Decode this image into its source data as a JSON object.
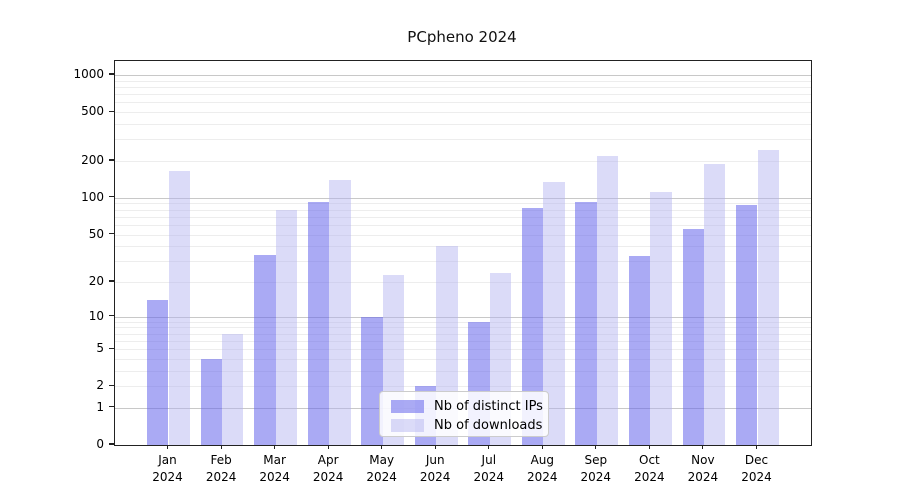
{
  "chart_data": {
    "type": "bar",
    "title": "PCpheno 2024",
    "xlabel": "",
    "ylabel": "",
    "categories": [
      "Jan",
      "Feb",
      "Mar",
      "Apr",
      "May",
      "Jun",
      "Jul",
      "Aug",
      "Sep",
      "Oct",
      "Nov",
      "Dec"
    ],
    "category_year_label": "2024",
    "series": [
      {
        "name": "Nb of distinct IPs",
        "values": [
          14,
          4,
          34,
          92,
          10,
          2,
          9,
          82,
          93,
          33,
          56,
          88
        ],
        "color": "rgba(100,100,235,0.55)",
        "effective_hex": "#aaaaf4"
      },
      {
        "name": "Nb of downloads",
        "values": [
          165,
          7,
          80,
          139,
          23,
          40,
          24,
          135,
          220,
          112,
          190,
          245
        ],
        "color": "rgba(175,175,240,0.45)",
        "effective_hex": "#dbdbf8"
      }
    ],
    "yscale": "log1p (position proportional to log10(value+1))",
    "ylim": [
      0,
      1300
    ],
    "ytick_values": [
      0,
      1,
      2,
      5,
      10,
      20,
      50,
      100,
      200,
      500,
      1000
    ],
    "grid": {
      "shown": true,
      "major_values": [
        1,
        10,
        100,
        1000
      ],
      "minor_rule": "2-9 multiples of each decade",
      "major_color": "#c8c8c8",
      "minor_color": "#ededed"
    },
    "legend": {
      "position": "inside-bottom-center",
      "border_color": "#cccccc",
      "background": "#ffffff"
    },
    "colors": {
      "background": "#ffffff",
      "spine": "#222222",
      "text": "#000000"
    }
  }
}
